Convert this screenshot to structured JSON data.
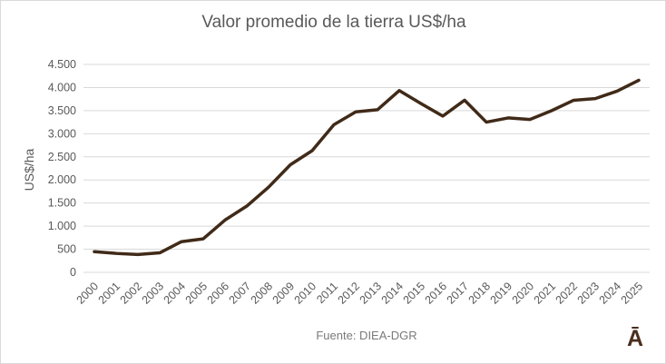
{
  "chart_data": {
    "type": "line",
    "title": "Valor promedio de la tierra US$/ha",
    "ylabel": "US$/ha",
    "xlabel": "",
    "categories": [
      "2000",
      "2001",
      "2002",
      "2003",
      "2004",
      "2005",
      "2006",
      "2007",
      "2008",
      "2009",
      "2010",
      "2011",
      "2012",
      "2013",
      "2014",
      "2015",
      "2016",
      "2017",
      "2018",
      "2019",
      "2020",
      "2021",
      "2022",
      "2023",
      "2024",
      "2025"
    ],
    "values": [
      448,
      409,
      385,
      422,
      664,
      725,
      1132,
      1434,
      1844,
      2329,
      2633,
      3196,
      3473,
      3519,
      3934,
      3652,
      3382,
      3726,
      3251,
      3342,
      3308,
      3500,
      3723,
      3761,
      3921,
      4157
    ],
    "ylim": [
      0,
      4500
    ],
    "y_tick_step": 500,
    "y_tick_labels": [
      "0",
      "500",
      "1.000",
      "1.500",
      "2.000",
      "2.500",
      "3.000",
      "3.500",
      "4.000",
      "4.500"
    ],
    "grid": "horizontal",
    "legend": "none",
    "x_tick_rotation": 45,
    "line_color": "#402a18",
    "line_width": 3.5
  },
  "footer": {
    "source": "Fuente: DIEA-DGR",
    "logo": "Ā"
  },
  "colors": {
    "background": "#ffffff",
    "border": "#d9d9d9",
    "grid": "#d9d9d9",
    "text": "#595959"
  }
}
